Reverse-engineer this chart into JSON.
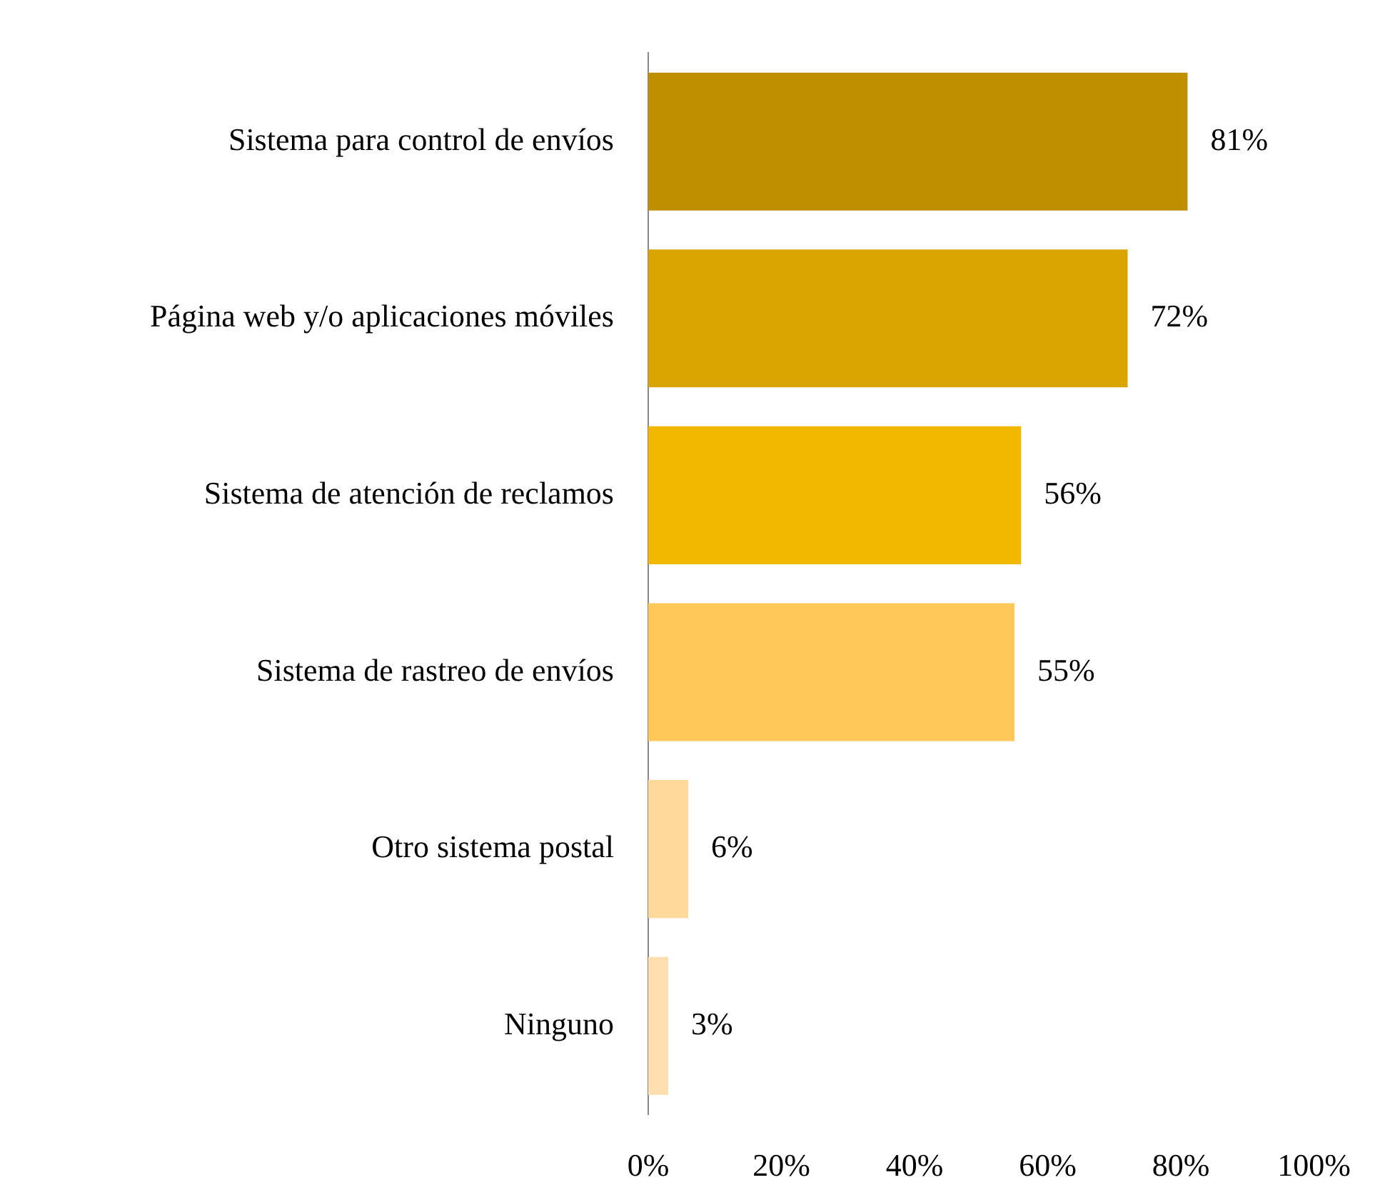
{
  "chart_data": {
    "type": "bar",
    "orientation": "horizontal",
    "categories": [
      "Sistema para control de envíos",
      "Página web y/o aplicaciones móviles",
      "Sistema de atención de reclamos",
      "Sistema de rastreo de envíos",
      "Otro sistema postal",
      "Ninguno"
    ],
    "values": [
      81,
      72,
      56,
      55,
      6,
      3
    ],
    "colors": [
      "#bf8f00",
      "#dba500",
      "#f2b800",
      "#ffc859",
      "#ffd89c",
      "#ffdfb0"
    ],
    "value_labels": [
      "81%",
      "72%",
      "56%",
      "55%",
      "6%",
      "3%"
    ],
    "xlim": [
      0,
      100
    ],
    "xticks": [
      {
        "value": 0,
        "label": "0%"
      },
      {
        "value": 20,
        "label": "20%"
      },
      {
        "value": 40,
        "label": "40%"
      },
      {
        "value": 60,
        "label": "60%"
      },
      {
        "value": 80,
        "label": "80%"
      },
      {
        "value": 100,
        "label": "100%"
      }
    ],
    "grid": false,
    "legend": false
  }
}
